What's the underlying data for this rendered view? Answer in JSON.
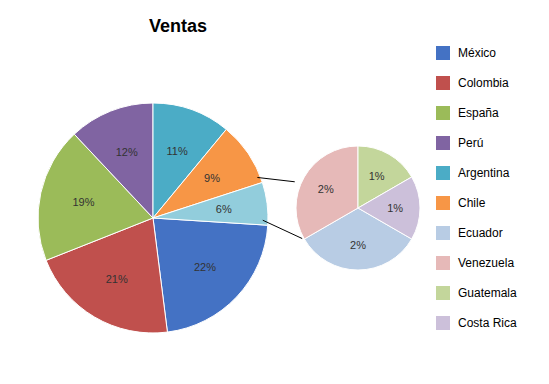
{
  "chart_data": [
    {
      "type": "pie",
      "title": "Ventas",
      "categories": [
        "México",
        "Colombia",
        "España",
        "Perú",
        "Argentina",
        "Chile",
        "Ecuador"
      ],
      "values": [
        22,
        21,
        19,
        12,
        11,
        9,
        6
      ],
      "value_labels": [
        "22%",
        "21%",
        "19%",
        "12%",
        "11%",
        "9%",
        "6%"
      ],
      "colors": [
        "#4472C4",
        "#C0504D",
        "#9BBB59",
        "#8064A2",
        "#4BACC6",
        "#F79646",
        "#92CDDC"
      ],
      "data_labels": true,
      "legend": "right"
    },
    {
      "type": "pie",
      "categories": [
        "Ecuador",
        "Venezuela",
        "Guatemala",
        "Costa Rica"
      ],
      "values": [
        2,
        2,
        1,
        1
      ],
      "value_labels": [
        "2%",
        "2%",
        "1%",
        "1%"
      ],
      "colors": [
        "#B8CCE4",
        "#E6B9B8",
        "#C3D69B",
        "#CCC0DA"
      ],
      "data_labels": true
    }
  ]
}
